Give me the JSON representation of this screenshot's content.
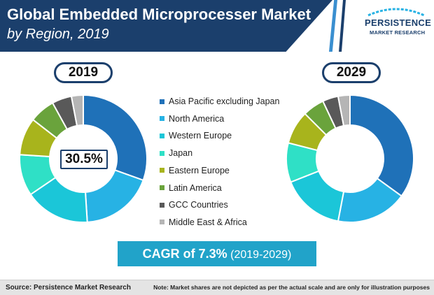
{
  "header": {
    "title": "Global Embedded Microprocesser Market",
    "subtitle": "by Region, 2019"
  },
  "logo": {
    "name": "PERSISTENCE",
    "tagline": "MARKET RESEARCH"
  },
  "colors": {
    "header_bg": "#1b3f6c",
    "accent": "#21a3c9"
  },
  "chart_data": {
    "type": "donut",
    "categories": [
      "Asia Pacific excluding Japan",
      "North America",
      "Western Europe",
      "Japan",
      "Eastern Europe",
      "Latin America",
      "GCC Countries",
      "Middle East & Africa"
    ],
    "colors": [
      "#1f71b8",
      "#27b2e4",
      "#1bc6d8",
      "#2fe0c6",
      "#a8b41c",
      "#6aa33c",
      "#595959",
      "#b5b5b5"
    ],
    "series": [
      {
        "name": "2019",
        "values": [
          30.5,
          18.5,
          16.5,
          10.5,
          9.5,
          6.5,
          5.0,
          3.0
        ]
      },
      {
        "name": "2029",
        "values": [
          35.0,
          18.0,
          16.0,
          10.0,
          8.5,
          5.5,
          4.0,
          3.0
        ]
      }
    ],
    "callout": "30.5%",
    "legend_position": "center"
  },
  "cagr": {
    "label": "CAGR of 7.3%",
    "period": "(2019-2029)"
  },
  "footer": {
    "source": "Source: Persistence Market Research",
    "note": "Note: Market shares are not depicted as per the actual scale and are only for illustration purposes"
  }
}
